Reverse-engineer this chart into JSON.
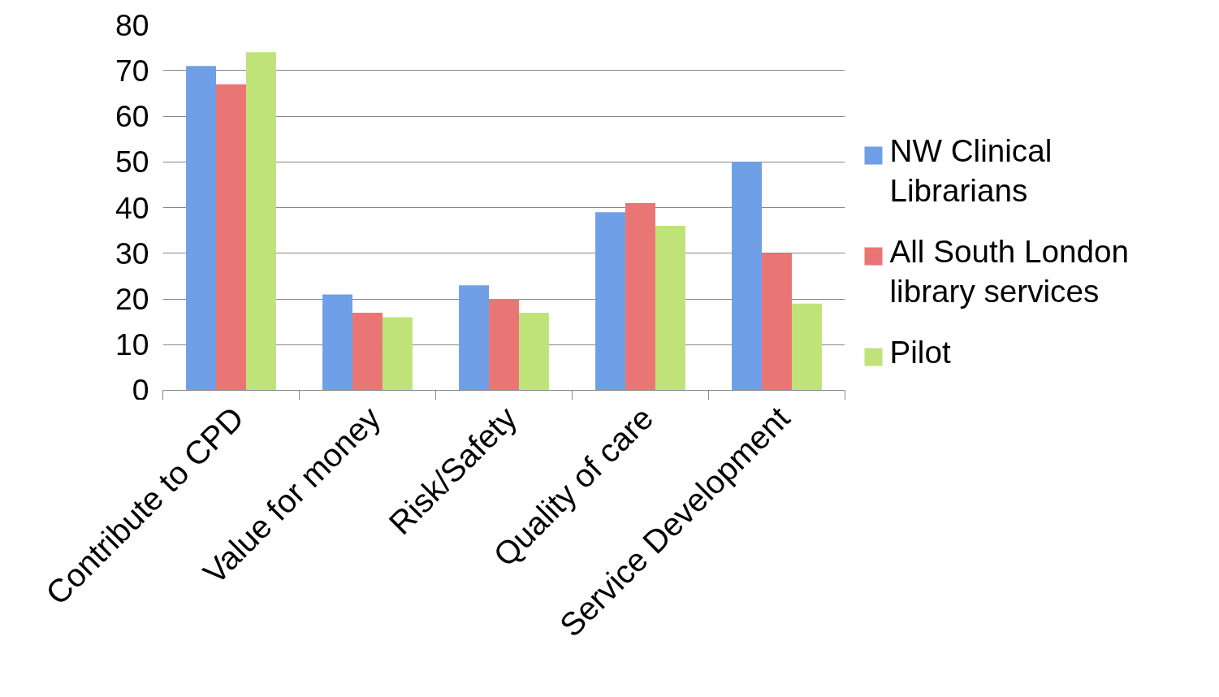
{
  "chart_data": {
    "type": "bar",
    "categories": [
      "Contribute to CPD",
      "Value for money",
      "Risk/Safety",
      "Quality of care",
      "Service Development"
    ],
    "series": [
      {
        "name": "NW Clinical Librarians",
        "color": "#6f9fe6",
        "values": [
          71,
          21,
          23,
          39,
          50
        ]
      },
      {
        "name": "All South London library services",
        "color": "#e97575",
        "values": [
          67,
          17,
          20,
          41,
          30
        ]
      },
      {
        "name": "Pilot",
        "color": "#bfe379",
        "values": [
          74,
          16,
          17,
          36,
          19
        ]
      }
    ],
    "ylim": [
      0,
      80
    ],
    "yticks": [
      0,
      10,
      20,
      30,
      40,
      50,
      60,
      70,
      80
    ],
    "grid": "y",
    "legend": "right"
  }
}
